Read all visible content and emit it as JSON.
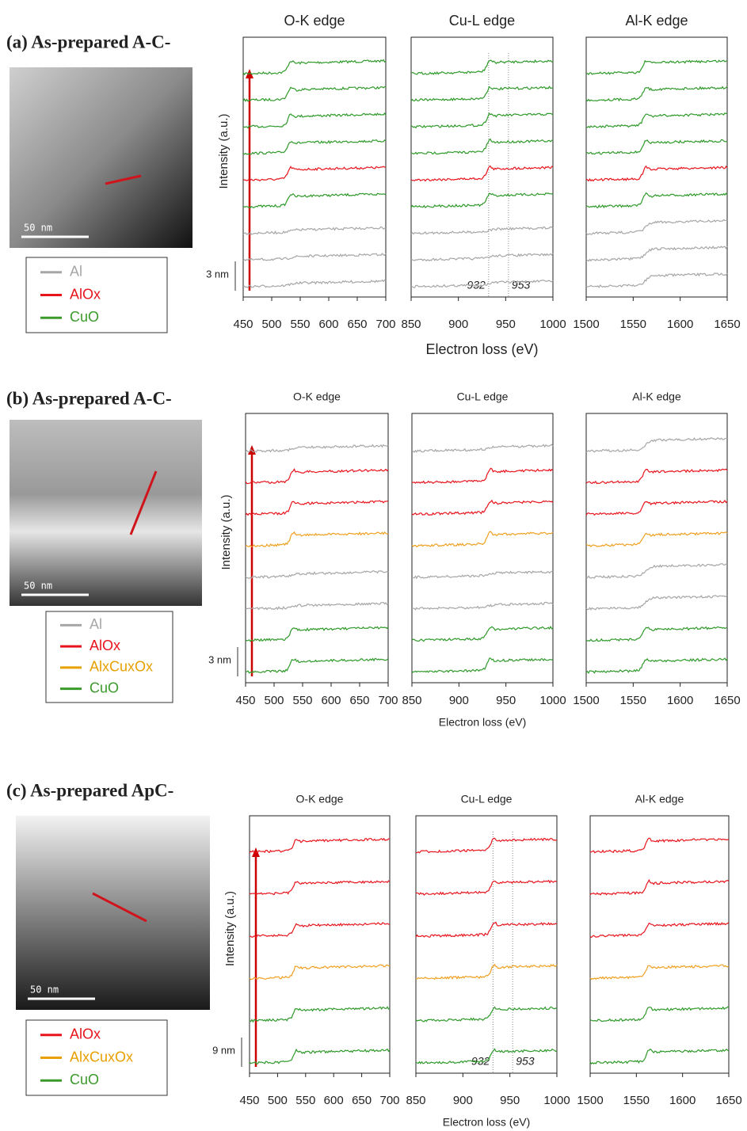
{
  "panels": [
    {
      "label": "(a) As-prepared A-C-",
      "scale_bar": "50 nm",
      "step_label": "3 nm",
      "ylabel": "Intensity (a.u.)",
      "xlabel": "Electron loss (eV)",
      "legend": [
        {
          "name": "Al",
          "color": "#a6a6a6"
        },
        {
          "name": "AlOx",
          "color": "#e8141c"
        },
        {
          "name": "CuO",
          "color": "#3a9a2a"
        }
      ],
      "plots": [
        {
          "title": "O-K edge",
          "xlim": [
            450,
            700
          ],
          "xticks": [
            450,
            500,
            550,
            600,
            650,
            700
          ],
          "curves": [
            "#2f9a2a",
            "#2f9a2a",
            "#2f9a2a",
            "#2f9a2a",
            "#e8141c",
            "#2f9a2a",
            "#a6a6a6",
            "#a6a6a6",
            "#a6a6a6"
          ]
        },
        {
          "title": "Cu-L edge",
          "xlim": [
            850,
            1000
          ],
          "xticks": [
            850,
            900,
            950,
            1000
          ],
          "annotations": [
            932,
            953
          ],
          "curves": [
            "#2f9a2a",
            "#2f9a2a",
            "#2f9a2a",
            "#2f9a2a",
            "#e8141c",
            "#2f9a2a",
            "#a6a6a6",
            "#a6a6a6",
            "#a6a6a6"
          ]
        },
        {
          "title": "Al-K edge",
          "xlim": [
            1500,
            1650
          ],
          "xticks": [
            1500,
            1550,
            1600,
            1650
          ],
          "curves": [
            "#2f9a2a",
            "#2f9a2a",
            "#2f9a2a",
            "#2f9a2a",
            "#e8141c",
            "#2f9a2a",
            "#a6a6a6",
            "#a6a6a6",
            "#a6a6a6"
          ]
        }
      ]
    },
    {
      "label": "(b) As-prepared A-C-",
      "scale_bar": "50 nm",
      "step_label": "3 nm",
      "ylabel": "Intensity (a.u.)",
      "xlabel": "Electron loss (eV)",
      "legend": [
        {
          "name": "Al",
          "color": "#a6a6a6"
        },
        {
          "name": "AlOx",
          "color": "#e8141c"
        },
        {
          "name": "AlxCuxOx",
          "color": "#e8a000"
        },
        {
          "name": "CuO",
          "color": "#3a9a2a"
        }
      ],
      "plots": [
        {
          "title": "O-K edge",
          "xlim": [
            450,
            700
          ],
          "xticks": [
            450,
            500,
            550,
            600,
            650,
            700
          ],
          "curves": [
            "#a6a6a6",
            "#e8141c",
            "#e8141c",
            "#f0a020",
            "#a6a6a6",
            "#a6a6a6",
            "#2f9a2a",
            "#2f9a2a"
          ]
        },
        {
          "title": "Cu-L edge",
          "xlim": [
            850,
            1000
          ],
          "xticks": [
            850,
            900,
            950,
            1000
          ],
          "curves": [
            "#a6a6a6",
            "#e8141c",
            "#e8141c",
            "#f0a020",
            "#a6a6a6",
            "#a6a6a6",
            "#2f9a2a",
            "#2f9a2a"
          ]
        },
        {
          "title": "Al-K edge",
          "xlim": [
            1500,
            1650
          ],
          "xticks": [
            1500,
            1550,
            1600,
            1650
          ],
          "curves": [
            "#a6a6a6",
            "#e8141c",
            "#e8141c",
            "#f0a020",
            "#a6a6a6",
            "#a6a6a6",
            "#2f9a2a",
            "#2f9a2a"
          ]
        }
      ]
    },
    {
      "label": "(c) As-prepared ApC-",
      "scale_bar": "50 nm",
      "step_label": "9 nm",
      "ylabel": "Intensity (a.u.)",
      "xlabel": "Electron loss (eV)",
      "legend": [
        {
          "name": "AlOx",
          "color": "#e8141c"
        },
        {
          "name": "AlxCuxOx",
          "color": "#e8a000"
        },
        {
          "name": "CuO",
          "color": "#3a9a2a"
        }
      ],
      "plots": [
        {
          "title": "O-K edge",
          "xlim": [
            450,
            700
          ],
          "xticks": [
            450,
            500,
            550,
            600,
            650,
            700
          ],
          "curves": [
            "#e8141c",
            "#e8141c",
            "#e8141c",
            "#f0a020",
            "#2f9a2a",
            "#2f9a2a"
          ]
        },
        {
          "title": "Cu-L edge",
          "xlim": [
            850,
            1000
          ],
          "xticks": [
            850,
            900,
            950,
            1000
          ],
          "annotations": [
            932,
            953
          ],
          "curves": [
            "#e8141c",
            "#e8141c",
            "#e8141c",
            "#f0a020",
            "#2f9a2a",
            "#2f9a2a"
          ]
        },
        {
          "title": "Al-K edge",
          "xlim": [
            1500,
            1650
          ],
          "xticks": [
            1500,
            1550,
            1600,
            1650
          ],
          "curves": [
            "#e8141c",
            "#e8141c",
            "#e8141c",
            "#f0a020",
            "#2f9a2a",
            "#2f9a2a"
          ]
        }
      ]
    }
  ]
}
